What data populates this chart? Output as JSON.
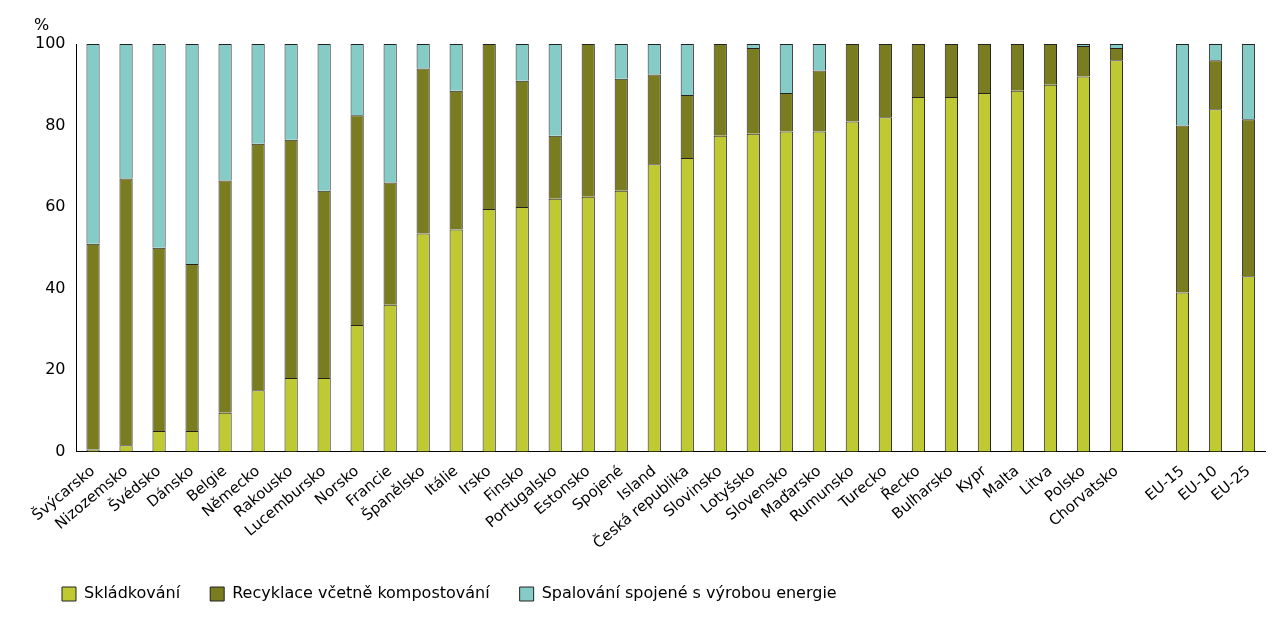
{
  "chart_data": {
    "type": "bar",
    "stacked": true,
    "ylabel": "%",
    "categories": [
      "Švýcarsko",
      "Nizozemsko",
      "Švédsko",
      "Dánsko",
      "Belgie",
      "Německo",
      "Rakousko",
      "Lucembursko",
      "Norsko",
      "Francie",
      "Španělsko",
      "Itálie",
      "Irsko",
      "Finsko",
      "Portugalsko",
      "Estonsko",
      "Spojené",
      "Island",
      "Česká republika",
      "Slovinsko",
      "Lotyšsko",
      "Slovensko",
      "Maďarsko",
      "Rumunsko",
      "Turecko",
      "Řecko",
      "Bulharsko",
      "Kypr",
      "Malta",
      "Litva",
      "Polsko",
      "Chorvatsko",
      null,
      "EU-15",
      "EU-10",
      "EU-25"
    ],
    "series": [
      {
        "name": "Skládkování",
        "color": "#bfc932",
        "values": [
          0.5,
          1.5,
          5,
          5,
          9.5,
          15,
          18,
          18,
          31,
          36,
          53.5,
          54.5,
          59.5,
          60,
          62,
          62.5,
          64,
          70.5,
          72,
          77.5,
          78,
          78.5,
          78.5,
          81,
          82,
          87,
          87,
          88,
          88.5,
          90,
          92,
          96,
          null,
          39,
          84,
          43
        ]
      },
      {
        "name": "Recyklace včetně kompostování",
        "color": "#7a7d1f",
        "values": [
          50.5,
          65.5,
          45,
          41,
          57,
          60.5,
          58.5,
          46,
          51.5,
          30,
          40.5,
          34,
          40.5,
          31,
          15.5,
          37.5,
          27.5,
          22,
          15.5,
          22.5,
          21,
          9.5,
          15,
          19,
          18,
          13,
          13,
          12,
          11.5,
          10,
          7.5,
          3,
          null,
          41,
          12,
          38.5
        ]
      },
      {
        "name": "Spalování spojené s výrobou energie",
        "color": "#85cbc6",
        "values": [
          49,
          33,
          50,
          54,
          33.5,
          24.5,
          23.5,
          36,
          17.5,
          34,
          6,
          11.5,
          0,
          9,
          22.5,
          0,
          8.5,
          7.5,
          12.5,
          0,
          1,
          12,
          6.5,
          0,
          0,
          0,
          0,
          0,
          0,
          0,
          0.5,
          1,
          null,
          20,
          4,
          18.5
        ]
      }
    ],
    "ylim": [
      0,
      100
    ],
    "yticks": [
      0,
      20,
      40,
      60,
      80,
      100
    ],
    "grid": false,
    "legend": "bottom"
  }
}
